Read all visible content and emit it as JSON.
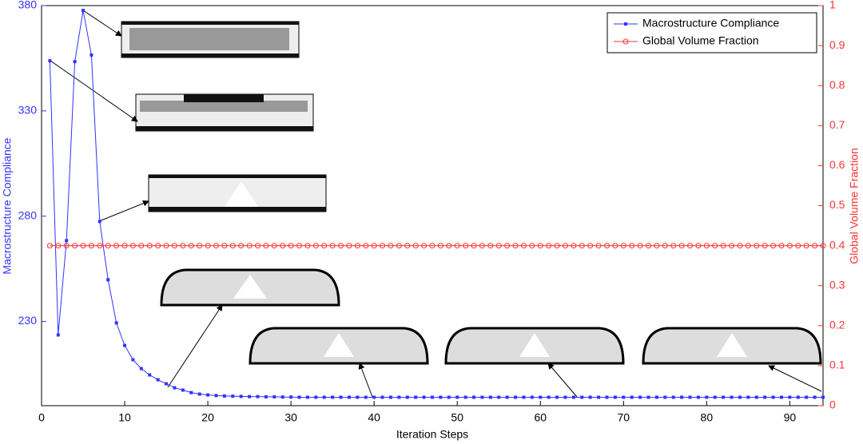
{
  "chart_data": {
    "type": "line",
    "x_label": "Iteration Steps",
    "y_label": "Macrostructure Compliance",
    "y2_label": "Global Volume Fraction",
    "x": [
      1,
      2,
      3,
      4,
      5,
      6,
      7,
      8,
      9,
      10,
      11,
      12,
      13,
      14,
      15,
      16,
      17,
      18,
      19,
      20,
      21,
      22,
      23,
      24,
      25,
      26,
      27,
      28,
      29,
      30,
      31,
      32,
      33,
      34,
      35,
      36,
      37,
      38,
      39,
      40,
      41,
      42,
      43,
      44,
      45,
      46,
      47,
      48,
      49,
      50,
      51,
      52,
      53,
      54,
      55,
      56,
      57,
      58,
      59,
      60,
      61,
      62,
      63,
      64,
      65,
      66,
      67,
      68,
      69,
      70,
      71,
      72,
      73,
      74,
      75,
      76,
      77,
      78,
      79,
      80,
      81,
      82,
      83,
      84,
      85,
      86,
      87,
      88,
      89,
      90,
      91,
      92,
      93,
      94
    ],
    "series": [
      {
        "name": "Macrostructure Compliance",
        "color": "#3333ff",
        "axis": "y",
        "values": [
          353.8,
          223.6,
          268.4,
          353.4,
          377.7,
          356.5,
          277.5,
          249.8,
          229.3,
          218.6,
          211.8,
          207.6,
          204.6,
          202.3,
          200.4,
          198.5,
          197.4,
          196.2,
          195.5,
          195.1,
          194.8,
          194.6,
          194.5,
          194.4,
          194.3,
          194.3,
          194.2,
          194.2,
          194.1,
          194.1,
          194.0,
          194.0,
          194.0,
          194.0,
          194.0,
          194.0,
          194.0,
          194.0,
          194.0,
          194.0,
          194.0,
          194.0,
          194.0,
          194.0,
          194.0,
          194.0,
          194.0,
          194.0,
          194.0,
          194.0,
          194.0,
          194.0,
          194.0,
          194.0,
          194.0,
          194.0,
          194.0,
          194.0,
          194.0,
          194.0,
          194.0,
          194.0,
          194.0,
          194.0,
          194.0,
          194.0,
          194.0,
          194.0,
          194.0,
          194.0,
          194.0,
          194.0,
          194.0,
          194.0,
          194.0,
          194.0,
          194.0,
          194.0,
          194.0,
          194.0,
          194.0,
          194.0,
          194.0,
          194.0,
          194.0,
          194.0,
          194.0,
          194.0,
          194.0,
          194.0,
          194.0,
          194.0,
          194.0,
          194.0
        ]
      },
      {
        "name": "Global Volume Fraction",
        "color": "#ff3333",
        "axis": "y2",
        "values": [
          0.4,
          0.4,
          0.4,
          0.4,
          0.4,
          0.4,
          0.4,
          0.4,
          0.4,
          0.4,
          0.4,
          0.4,
          0.4,
          0.4,
          0.4,
          0.4,
          0.4,
          0.4,
          0.4,
          0.4,
          0.4,
          0.4,
          0.4,
          0.4,
          0.4,
          0.4,
          0.4,
          0.4,
          0.4,
          0.4,
          0.4,
          0.4,
          0.4,
          0.4,
          0.4,
          0.4,
          0.4,
          0.4,
          0.4,
          0.4,
          0.4,
          0.4,
          0.4,
          0.4,
          0.4,
          0.4,
          0.4,
          0.4,
          0.4,
          0.4,
          0.4,
          0.4,
          0.4,
          0.4,
          0.4,
          0.4,
          0.4,
          0.4,
          0.4,
          0.4,
          0.4,
          0.4,
          0.4,
          0.4,
          0.4,
          0.4,
          0.4,
          0.4,
          0.4,
          0.4,
          0.4,
          0.4,
          0.4,
          0.4,
          0.4,
          0.4,
          0.4,
          0.4,
          0.4,
          0.4,
          0.4,
          0.4,
          0.4,
          0.4,
          0.4,
          0.4,
          0.4,
          0.4,
          0.4,
          0.4,
          0.4,
          0.4,
          0.4,
          0.4
        ]
      }
    ],
    "xlim": [
      0,
      94
    ],
    "xticks": [
      0,
      10,
      20,
      30,
      40,
      50,
      60,
      70,
      80,
      90
    ],
    "ylim": [
      190,
      380
    ],
    "yticks": [
      230,
      280,
      330,
      380
    ],
    "y2lim": [
      0,
      1
    ],
    "y2ticks": [
      0,
      0.1,
      0.2,
      0.3,
      0.4,
      0.5,
      0.6,
      0.7,
      0.8,
      0.9,
      1
    ],
    "legend": "top-right"
  }
}
